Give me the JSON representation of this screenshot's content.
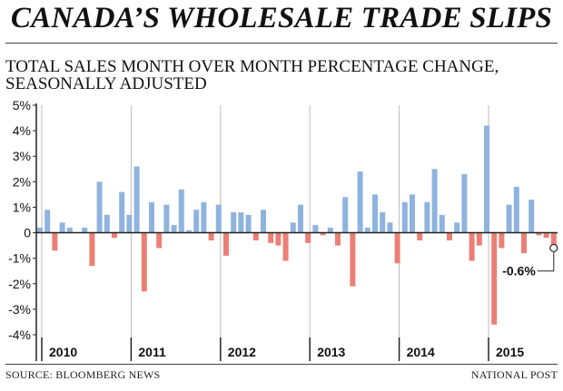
{
  "header": {
    "title": "CANADA’S WHOLESALE TRADE SLIPS",
    "subtitle_line1": "TOTAL SALES MONTH OVER MONTH PERCENTAGE CHANGE,",
    "subtitle_line2": "SEASONALLY ADJUSTED"
  },
  "footer": {
    "source": "SOURCE: BLOOMBERG NEWS",
    "credit": "NATIONAL POST"
  },
  "colors": {
    "positive": "#8fb3de",
    "negative": "#ec7f75",
    "axis": "#222222",
    "grid": "#bbbbbb"
  },
  "chart_data": {
    "type": "bar",
    "title": "CANADA’S WHOLESALE TRADE SLIPS",
    "subtitle": "TOTAL SALES MONTH OVER MONTH PERCENTAGE CHANGE, SEASONALLY ADJUSTED",
    "ylim": [
      -4,
      5
    ],
    "yticks": [
      "5%",
      "4%",
      "3%",
      "2%",
      "1%",
      "0",
      "-1%",
      "-2%",
      "-3%",
      "-4%"
    ],
    "ytick_values": [
      5,
      4,
      3,
      2,
      1,
      0,
      -1,
      -2,
      -3,
      -4
    ],
    "years": [
      "2010",
      "2011",
      "2012",
      "2013",
      "2014",
      "2015"
    ],
    "start_year": 2010,
    "grid": "vertical gridlines at year boundaries",
    "values": [
      0.2,
      0.9,
      -0.7,
      0.4,
      0.2,
      0.0,
      0.2,
      -1.3,
      2.0,
      0.7,
      -0.2,
      1.6,
      0.7,
      2.6,
      -2.3,
      1.2,
      -0.6,
      1.1,
      0.3,
      1.7,
      0.1,
      0.9,
      1.2,
      -0.3,
      1.1,
      -0.9,
      0.8,
      0.8,
      0.7,
      -0.3,
      0.9,
      -0.4,
      -0.5,
      -1.1,
      0.4,
      1.1,
      -0.4,
      0.3,
      -0.1,
      0.2,
      -0.5,
      1.4,
      -2.1,
      2.4,
      0.2,
      1.5,
      0.8,
      0.4,
      -1.2,
      1.2,
      1.5,
      -0.3,
      1.2,
      2.5,
      0.7,
      -0.3,
      0.4,
      2.3,
      -1.1,
      -0.5,
      4.2,
      -3.6,
      -0.6,
      1.1,
      1.8,
      -0.8,
      1.3,
      -0.1,
      -0.2,
      -0.6
    ],
    "annotation": {
      "label": "-0.6%",
      "index": 69,
      "value": -0.6
    }
  }
}
